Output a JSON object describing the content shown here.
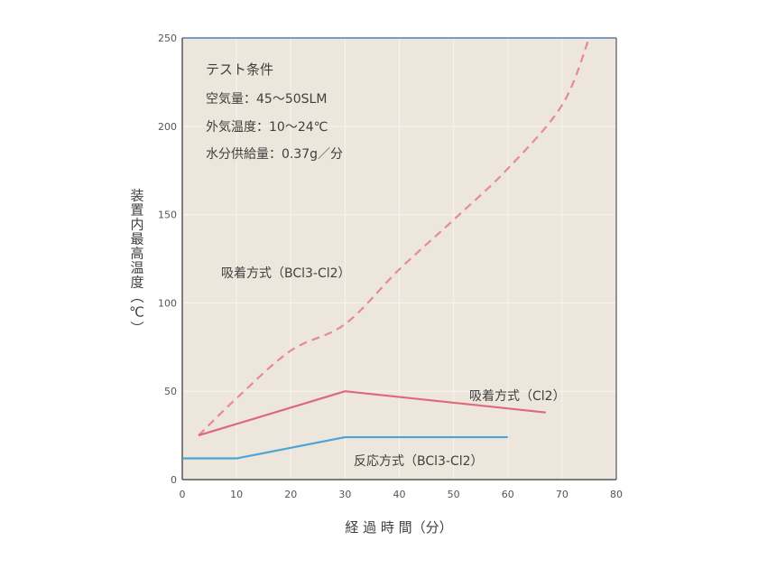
{
  "chart_data": {
    "type": "line",
    "xlabel": "経 過 時 間（分）",
    "ylabel": "装置内最高温度（℃）",
    "xlim": [
      0,
      80
    ],
    "ylim": [
      0,
      250
    ],
    "xticks": [
      "0",
      "10",
      "20",
      "30",
      "40",
      "50",
      "60",
      "70",
      "80"
    ],
    "yticks": [
      "0",
      "50",
      "100",
      "150",
      "200",
      "250"
    ],
    "grid": true,
    "conditions": {
      "title": "テスト条件",
      "lines": [
        "空気量：45〜50SLM",
        "外気温度：10〜24℃",
        "水分供給量：0.37g／分"
      ]
    },
    "series": [
      {
        "name": "吸着方式（BCl3-Cl2）",
        "style": "dashed",
        "color": "#e58a98",
        "x": [
          3,
          10,
          20,
          30,
          40,
          50,
          60,
          70,
          75
        ],
        "y": [
          25,
          46,
          73,
          88,
          119,
          147,
          176,
          212,
          250
        ]
      },
      {
        "name": "吸着方式（Cl2）",
        "style": "solid",
        "color": "#e0687c",
        "x": [
          3,
          30,
          67
        ],
        "y": [
          25,
          50,
          38
        ]
      },
      {
        "name": "反応方式（BCl3-Cl2）",
        "style": "solid",
        "color": "#4fa3d6",
        "x": [
          0,
          10,
          30,
          60
        ],
        "y": [
          12,
          12,
          24,
          24
        ]
      }
    ]
  }
}
